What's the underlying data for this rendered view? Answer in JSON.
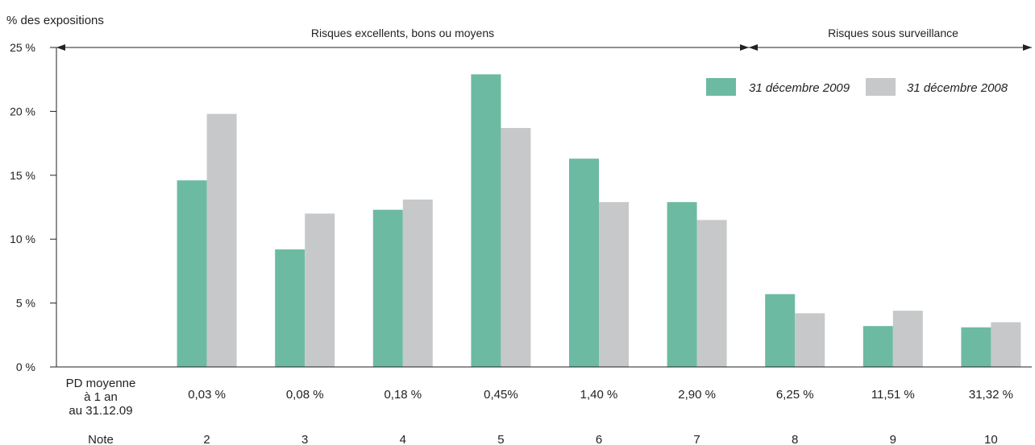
{
  "chart_data": {
    "type": "bar",
    "ylabel": "% des expositions",
    "ylim": [
      0,
      25
    ],
    "yticks": [
      0,
      5,
      10,
      15,
      20,
      25
    ],
    "ytick_labels": [
      "0 %",
      "5 %",
      "10 %",
      "15 %",
      "20 %",
      "25 %"
    ],
    "categories": [
      "2",
      "3",
      "4",
      "5",
      "6",
      "7",
      "8",
      "9",
      "10"
    ],
    "pd_row_label": [
      "PD moyenne",
      "à 1 an",
      "au 31.12.09"
    ],
    "pd_values": [
      "0,03 %",
      "0,08 %",
      "0,18 %",
      "0,45%",
      "1,40 %",
      "2,90 %",
      "6,25 %",
      "11,51 %",
      "31,32 %"
    ],
    "note_row_label": "Note",
    "series": [
      {
        "name": "31 décembre 2009",
        "color": "#6dbaa3",
        "values": [
          14.6,
          9.2,
          12.3,
          22.9,
          16.3,
          12.9,
          5.7,
          3.2,
          3.1
        ]
      },
      {
        "name": "31 décembre 2008",
        "color": "#c6c8c9",
        "values": [
          19.8,
          12.0,
          13.1,
          18.7,
          12.9,
          11.5,
          4.2,
          4.4,
          3.5
        ]
      }
    ],
    "zones": [
      {
        "label": "Risques excellents, bons ou moyens",
        "from_category": "2",
        "to_category": "7"
      },
      {
        "label": "Risques sous surveillance",
        "from_category": "8",
        "to_category": "10"
      }
    ],
    "legend_position": "top-right",
    "grid": false
  }
}
